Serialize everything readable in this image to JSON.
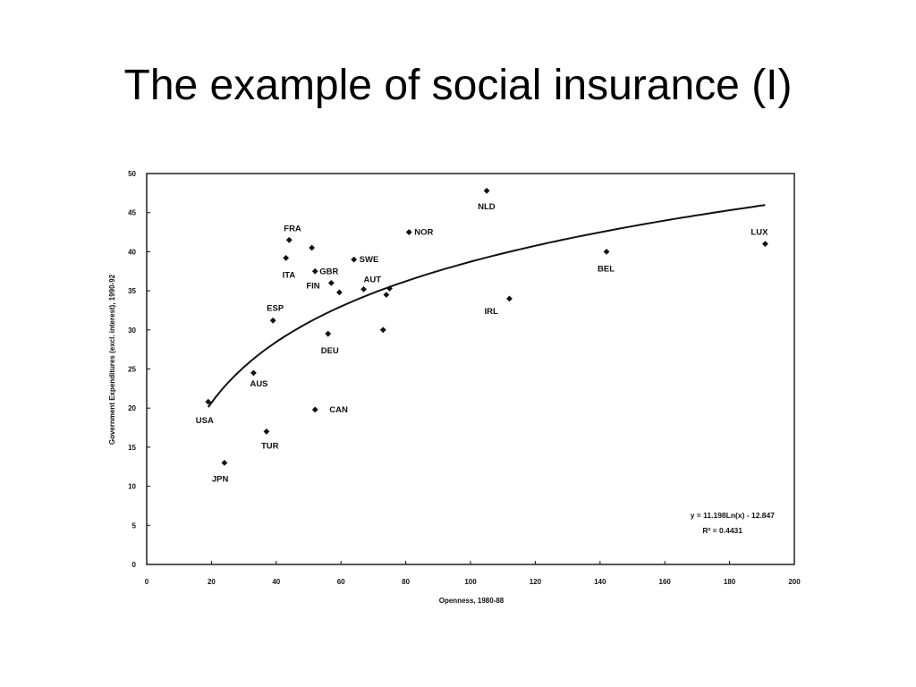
{
  "slide": {
    "title": "The example of social insurance (I)"
  },
  "chart_data": {
    "type": "scatter",
    "title": "",
    "xlabel": "Openness, 1980-88",
    "ylabel": "Government Expenditures (excl. interest), 1990-92",
    "xlim": [
      0,
      200
    ],
    "ylim": [
      0,
      50
    ],
    "x_ticks": [
      0,
      20,
      40,
      60,
      80,
      100,
      120,
      140,
      160,
      180,
      200
    ],
    "x_tick_labels": [
      "0",
      "20",
      "40",
      "60",
      "80",
      "100",
      "120",
      "140",
      "160",
      "180",
      "200"
    ],
    "y_ticks": [
      0,
      5,
      10,
      15,
      20,
      25,
      30,
      35,
      40,
      45,
      50
    ],
    "y_tick_labels": [
      "0",
      "5",
      "10",
      "15",
      "20",
      "25",
      "30",
      "35",
      "40",
      "45",
      "50"
    ],
    "grid": false,
    "points": [
      {
        "label": "USA",
        "x": 19,
        "y": 20.8
      },
      {
        "label": "JPN",
        "x": 24,
        "y": 13
      },
      {
        "label": "AUS",
        "x": 33,
        "y": 24.5
      },
      {
        "label": "TUR",
        "x": 37,
        "y": 17
      },
      {
        "label": "ESP",
        "x": 39,
        "y": 31.2
      },
      {
        "label": "ITA",
        "x": 43,
        "y": 39.2
      },
      {
        "label": "FRA",
        "x": 44,
        "y": 41.5
      },
      {
        "label": "",
        "x": 51,
        "y": 40.5
      },
      {
        "label": "CAN",
        "x": 52,
        "y": 19.8
      },
      {
        "label": "GBR",
        "x": 52,
        "y": 37.5
      },
      {
        "label": "DEU",
        "x": 56,
        "y": 29.5
      },
      {
        "label": "FIN",
        "x": 57,
        "y": 36
      },
      {
        "label": "",
        "x": 59.5,
        "y": 34.8
      },
      {
        "label": "SWE",
        "x": 64,
        "y": 39
      },
      {
        "label": "AUT",
        "x": 67,
        "y": 35.2
      },
      {
        "label": "",
        "x": 73,
        "y": 30
      },
      {
        "label": "",
        "x": 74,
        "y": 34.5
      },
      {
        "label": "",
        "x": 75,
        "y": 35.3
      },
      {
        "label": "NOR",
        "x": 81,
        "y": 42.5
      },
      {
        "label": "NLD",
        "x": 105,
        "y": 47.8
      },
      {
        "label": "IRL",
        "x": 112,
        "y": 34
      },
      {
        "label": "BEL",
        "x": 142,
        "y": 40
      },
      {
        "label": "LUX",
        "x": 191,
        "y": 41
      }
    ],
    "trendline": {
      "type": "logarithmic",
      "a": 11.198,
      "b": -12.847,
      "x_from": 19,
      "x_to": 191
    },
    "equation_text": "y = 11.198Ln(x) - 12.847",
    "r2_text": "R² = 0.4431",
    "marker_color": "#111111",
    "line_color": "#111111"
  }
}
